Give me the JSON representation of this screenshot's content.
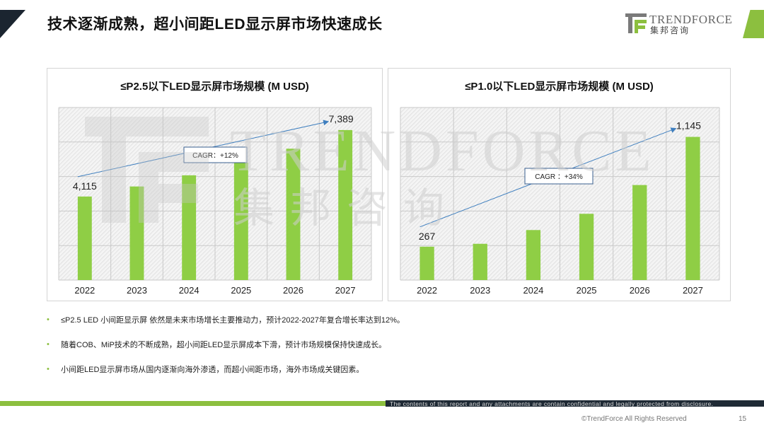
{
  "header": {
    "title": "技术逐渐成熟，超小间距LED显示屏市场快速成长",
    "logo_text": "TRENDFORCE",
    "logo_sub": "集邦咨询"
  },
  "watermark": {
    "text": "TRENDFORCE",
    "sub": "集邦咨询"
  },
  "colors": {
    "accent": "#8cbf3f",
    "bar": "#8fce45",
    "arrow": "#3f7fbf",
    "dark": "#1b2530"
  },
  "chart_data": [
    {
      "type": "bar",
      "title": "≤P2.5以下LED显示屏市场规模 (M USD)",
      "categories": [
        "2022",
        "2023",
        "2024",
        "2025",
        "2026",
        "2027"
      ],
      "values": [
        4115,
        4610,
        5160,
        5780,
        6470,
        7389
      ],
      "data_labels": {
        "first": "4,115",
        "last": "7,389"
      },
      "ylim": [
        0,
        8500
      ],
      "grid": true,
      "annotation": "CAGR：+12%"
    },
    {
      "type": "bar",
      "title": "≤P1.0以下LED显示屏市场规模 (M USD)",
      "categories": [
        "2022",
        "2023",
        "2024",
        "2025",
        "2026",
        "2027"
      ],
      "values": [
        267,
        290,
        400,
        530,
        760,
        1145
      ],
      "data_labels": {
        "first": "267",
        "last": "1,145"
      },
      "ylim": [
        0,
        1380
      ],
      "grid": true,
      "annotation": "CAGR ：+34%"
    }
  ],
  "bullets": [
    "≤P2.5 LED 小间距显示屏  依然是未来市场增长主要推动力，预计2022-2027年复合增长率达到12%。",
    "随着COB、MiP技术的不断成熟，超小间距LED显示屏成本下滑，预计市场规模保持快速成长。",
    "小间距LED显示屏市场从国内逐渐向海外渗透，而超小间距市场，海外市场成关键因素。"
  ],
  "footer": {
    "disclaimer": "The contents of this report and any attachments are contain confidential and legally protected from disclosure.",
    "copyright": "©TrendForce All Rights Reserved",
    "page_number": "15"
  }
}
